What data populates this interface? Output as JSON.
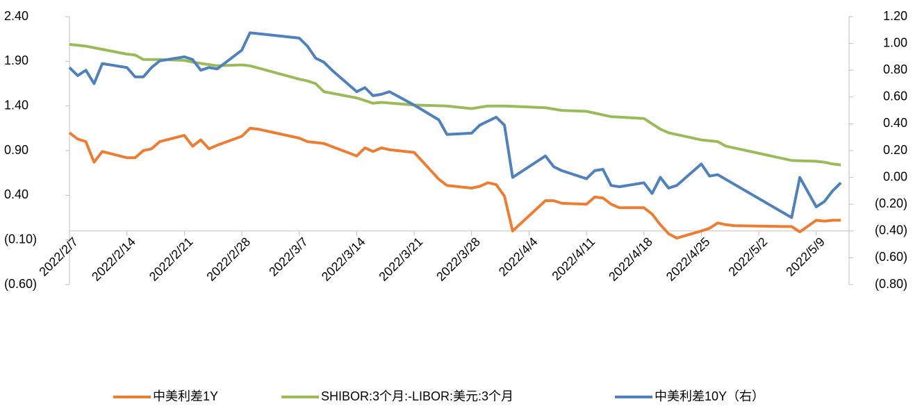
{
  "chart_data": {
    "type": "line",
    "xlim": [
      "2022/2/7",
      "2022/5/13"
    ],
    "xticks": [
      "2022/2/7",
      "2022/2/14",
      "2022/2/21",
      "2022/2/28",
      "2022/3/7",
      "2022/3/14",
      "2022/3/21",
      "2022/3/28",
      "2022/4/4",
      "2022/4/11",
      "2022/4/18",
      "2022/4/25",
      "2022/5/2",
      "2022/5/9"
    ],
    "ylim": [
      -0.6,
      2.4
    ],
    "yticks": [
      {
        "value": -0.6,
        "label": "(0.60)"
      },
      {
        "value": -0.1,
        "label": "(0.10)"
      },
      {
        "value": 0.4,
        "label": "0.40"
      },
      {
        "value": 0.9,
        "label": "0.90"
      },
      {
        "value": 1.4,
        "label": "1.40"
      },
      {
        "value": 1.9,
        "label": "1.90"
      },
      {
        "value": 2.4,
        "label": "2.40"
      }
    ],
    "y2lim": [
      -0.8,
      1.2
    ],
    "y2ticks": [
      {
        "value": -0.8,
        "label": "(0.80)"
      },
      {
        "value": -0.6,
        "label": "(0.60)"
      },
      {
        "value": -0.4,
        "label": "(0.40)"
      },
      {
        "value": -0.2,
        "label": "(0.20)"
      },
      {
        "value": 0,
        "label": "0.00"
      },
      {
        "value": 0.2,
        "label": "0.20"
      },
      {
        "value": 0.4,
        "label": "0.40"
      },
      {
        "value": 0.6,
        "label": "0.60"
      },
      {
        "value": 0.8,
        "label": "0.80"
      },
      {
        "value": 1.0,
        "label": "1.00"
      },
      {
        "value": 1.2,
        "label": "1.20"
      }
    ],
    "negative_tick_color": "#ff0000",
    "legend": "bottom",
    "series": [
      {
        "name": "中美利差1Y",
        "color": "#ed7d31",
        "x": [
          "2022/2/7",
          "2022/2/8",
          "2022/2/9",
          "2022/2/10",
          "2022/2/11",
          "2022/2/14",
          "2022/2/15",
          "2022/2/16",
          "2022/2/17",
          "2022/2/18",
          "2022/2/21",
          "2022/2/22",
          "2022/2/23",
          "2022/2/24",
          "2022/2/25",
          "2022/2/28",
          "2022/3/1",
          "2022/3/2",
          "2022/3/7",
          "2022/3/8",
          "2022/3/9",
          "2022/3/10",
          "2022/3/14",
          "2022/3/15",
          "2022/3/16",
          "2022/3/17",
          "2022/3/18",
          "2022/3/21",
          "2022/3/22",
          "2022/3/23",
          "2022/3/24",
          "2022/3/25",
          "2022/3/28",
          "2022/3/29",
          "2022/3/30",
          "2022/3/31",
          "2022/4/1",
          "2022/4/2",
          "2022/4/6",
          "2022/4/7",
          "2022/4/8",
          "2022/4/11",
          "2022/4/12",
          "2022/4/13",
          "2022/4/14",
          "2022/4/15",
          "2022/4/18",
          "2022/4/19",
          "2022/4/20",
          "2022/4/21",
          "2022/4/22",
          "2022/4/25",
          "2022/4/26",
          "2022/4/27",
          "2022/4/28",
          "2022/4/29",
          "2022/5/5",
          "2022/5/6",
          "2022/5/7",
          "2022/5/9",
          "2022/5/10",
          "2022/5/11",
          "2022/5/12"
        ],
        "values": [
          1.1,
          1.03,
          1.0,
          0.77,
          0.89,
          0.82,
          0.82,
          0.9,
          0.92,
          1.0,
          1.07,
          0.95,
          1.02,
          0.92,
          0.96,
          1.06,
          1.15,
          1.14,
          1.04,
          1.0,
          0.99,
          0.98,
          0.84,
          0.93,
          0.89,
          0.93,
          0.91,
          0.88,
          0.78,
          0.68,
          0.58,
          0.51,
          0.48,
          0.5,
          0.54,
          0.52,
          0.39,
          0.0,
          0.34,
          0.34,
          0.31,
          0.3,
          0.38,
          0.37,
          0.3,
          0.26,
          0.26,
          0.19,
          0.07,
          -0.03,
          -0.08,
          0.0,
          0.03,
          0.09,
          0.07,
          0.06,
          0.05,
          0.05,
          -0.01,
          0.12,
          0.11,
          0.12,
          0.12
        ]
      },
      {
        "name": "SHIBOR:3个月:-LIBOR:美元:3个月",
        "color": "#9bbb59",
        "x": [
          "2022/2/7",
          "2022/2/8",
          "2022/2/9",
          "2022/2/14",
          "2022/2/15",
          "2022/2/16",
          "2022/2/18",
          "2022/2/21",
          "2022/2/22",
          "2022/2/25",
          "2022/2/28",
          "2022/3/1",
          "2022/3/7",
          "2022/3/8",
          "2022/3/9",
          "2022/3/10",
          "2022/3/14",
          "2022/3/15",
          "2022/3/16",
          "2022/3/17",
          "2022/3/21",
          "2022/3/25",
          "2022/3/28",
          "2022/3/30",
          "2022/4/1",
          "2022/4/6",
          "2022/4/8",
          "2022/4/11",
          "2022/4/12",
          "2022/4/14",
          "2022/4/18",
          "2022/4/19",
          "2022/4/20",
          "2022/4/21",
          "2022/4/25",
          "2022/4/27",
          "2022/4/28",
          "2022/5/6",
          "2022/5/9",
          "2022/5/10",
          "2022/5/11",
          "2022/5/12"
        ],
        "values": [
          2.09,
          2.08,
          2.07,
          1.98,
          1.97,
          1.92,
          1.92,
          1.91,
          1.89,
          1.85,
          1.86,
          1.85,
          1.7,
          1.68,
          1.65,
          1.56,
          1.49,
          1.46,
          1.43,
          1.44,
          1.41,
          1.4,
          1.37,
          1.4,
          1.4,
          1.38,
          1.35,
          1.34,
          1.32,
          1.28,
          1.26,
          1.2,
          1.14,
          1.1,
          1.02,
          1.0,
          0.95,
          0.79,
          0.78,
          0.77,
          0.75,
          0.74
        ]
      },
      {
        "name": "中美利差10Y（右）",
        "color": "#4f81bd",
        "axis": "y2",
        "x": [
          "2022/2/7",
          "2022/2/8",
          "2022/2/9",
          "2022/2/10",
          "2022/2/11",
          "2022/2/14",
          "2022/2/15",
          "2022/2/16",
          "2022/2/17",
          "2022/2/18",
          "2022/2/21",
          "2022/2/22",
          "2022/2/23",
          "2022/2/24",
          "2022/2/25",
          "2022/2/28",
          "2022/3/1",
          "2022/3/7",
          "2022/3/8",
          "2022/3/9",
          "2022/3/10",
          "2022/3/11",
          "2022/3/14",
          "2022/3/15",
          "2022/3/16",
          "2022/3/17",
          "2022/3/18",
          "2022/3/21",
          "2022/3/24",
          "2022/3/25",
          "2022/3/28",
          "2022/3/29",
          "2022/3/31",
          "2022/4/1",
          "2022/4/2",
          "2022/4/6",
          "2022/4/7",
          "2022/4/8",
          "2022/4/11",
          "2022/4/12",
          "2022/4/13",
          "2022/4/14",
          "2022/4/15",
          "2022/4/18",
          "2022/4/19",
          "2022/4/20",
          "2022/4/21",
          "2022/4/22",
          "2022/4/25",
          "2022/4/26",
          "2022/4/27",
          "2022/5/6",
          "2022/5/7",
          "2022/5/9",
          "2022/5/10",
          "2022/5/11",
          "2022/5/12"
        ],
        "values": [
          0.82,
          0.76,
          0.8,
          0.7,
          0.85,
          0.82,
          0.75,
          0.75,
          0.82,
          0.87,
          0.9,
          0.88,
          0.8,
          0.82,
          0.81,
          0.95,
          1.08,
          1.04,
          0.98,
          0.89,
          0.86,
          0.8,
          0.64,
          0.67,
          0.61,
          0.62,
          0.64,
          0.54,
          0.43,
          0.32,
          0.33,
          0.39,
          0.45,
          0.39,
          0.0,
          0.16,
          0.08,
          0.05,
          -0.01,
          0.05,
          0.06,
          -0.06,
          -0.07,
          -0.04,
          -0.12,
          0.0,
          -0.08,
          -0.06,
          0.1,
          0.01,
          0.02,
          -0.3,
          0.0,
          -0.22,
          -0.18,
          -0.1,
          -0.04
        ]
      }
    ]
  }
}
